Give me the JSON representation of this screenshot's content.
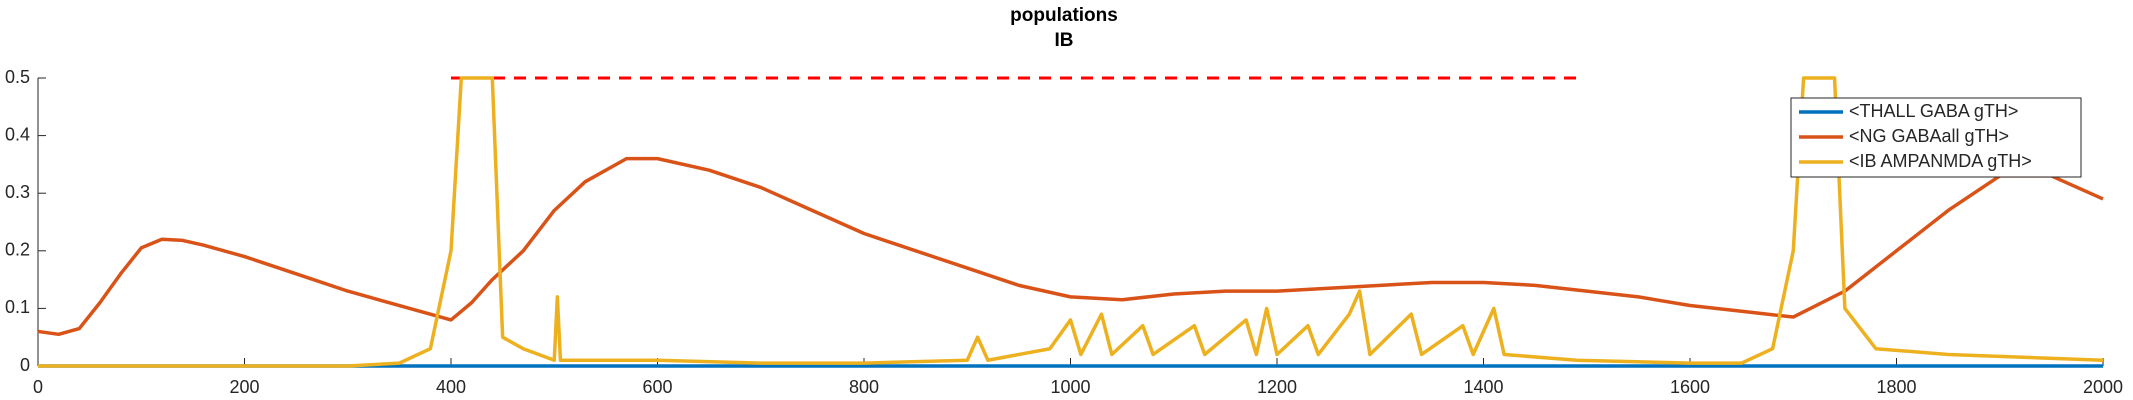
{
  "chart_data": {
    "type": "line",
    "title": "populations",
    "subtitle": "IB",
    "xlim": [
      0,
      2000
    ],
    "xticks": [
      0,
      200,
      400,
      600,
      800,
      1000,
      1200,
      1400,
      1600,
      1800,
      2000
    ],
    "ylim": [
      0,
      0.5
    ],
    "yticks": [
      0,
      0.1,
      0.2,
      0.3,
      0.4,
      0.5
    ],
    "grid": false,
    "legend_position": "upper-right",
    "reference_line": {
      "y": 0.5,
      "x": [
        400,
        1490
      ],
      "color": "#ff0000"
    },
    "series": [
      {
        "name": "<THALL GABA gTH>",
        "color": "#0072bd",
        "x": [
          0,
          2000
        ],
        "values": [
          0,
          0
        ]
      },
      {
        "name": "<NG GABAall gTH>",
        "color": "#d95319",
        "x": [
          0,
          20,
          40,
          60,
          80,
          100,
          120,
          140,
          160,
          200,
          250,
          300,
          350,
          400,
          420,
          440,
          470,
          500,
          530,
          570,
          600,
          650,
          700,
          750,
          800,
          850,
          900,
          950,
          1000,
          1050,
          1100,
          1150,
          1200,
          1250,
          1300,
          1350,
          1400,
          1450,
          1500,
          1550,
          1600,
          1650,
          1700,
          1750,
          1800,
          1850,
          1900,
          1950,
          2000
        ],
        "values": [
          0.06,
          0.055,
          0.065,
          0.11,
          0.16,
          0.205,
          0.22,
          0.218,
          0.21,
          0.19,
          0.16,
          0.13,
          0.105,
          0.08,
          0.11,
          0.15,
          0.2,
          0.27,
          0.32,
          0.36,
          0.36,
          0.34,
          0.31,
          0.27,
          0.23,
          0.2,
          0.17,
          0.14,
          0.12,
          0.115,
          0.125,
          0.13,
          0.13,
          0.135,
          0.14,
          0.145,
          0.145,
          0.14,
          0.13,
          0.12,
          0.105,
          0.095,
          0.085,
          0.13,
          0.2,
          0.27,
          0.33,
          0.33,
          0.29
        ]
      },
      {
        "name": "<IB AMPANMDA gTH>",
        "color": "#edb120",
        "x": [
          0,
          300,
          350,
          380,
          400,
          410,
          440,
          450,
          470,
          500,
          503,
          506,
          600,
          700,
          800,
          900,
          910,
          920,
          980,
          1000,
          1010,
          1030,
          1040,
          1070,
          1080,
          1120,
          1130,
          1170,
          1180,
          1190,
          1200,
          1230,
          1240,
          1270,
          1280,
          1290,
          1330,
          1340,
          1380,
          1390,
          1410,
          1420,
          1490,
          1600,
          1650,
          1680,
          1700,
          1710,
          1740,
          1750,
          1780,
          1850,
          2000
        ],
        "values": [
          0,
          0,
          0.005,
          0.03,
          0.2,
          0.5,
          0.5,
          0.05,
          0.03,
          0.01,
          0.12,
          0.01,
          0.01,
          0.005,
          0.005,
          0.01,
          0.05,
          0.01,
          0.03,
          0.08,
          0.02,
          0.09,
          0.02,
          0.07,
          0.02,
          0.07,
          0.02,
          0.08,
          0.02,
          0.1,
          0.02,
          0.07,
          0.02,
          0.09,
          0.13,
          0.02,
          0.09,
          0.02,
          0.07,
          0.02,
          0.1,
          0.02,
          0.01,
          0.005,
          0.005,
          0.03,
          0.2,
          0.5,
          0.5,
          0.1,
          0.03,
          0.02,
          0.01
        ]
      }
    ]
  }
}
